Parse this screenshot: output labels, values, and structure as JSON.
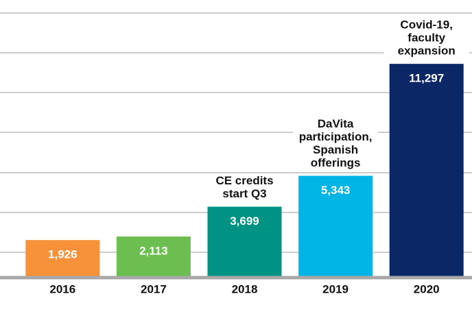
{
  "chart_data": {
    "type": "bar",
    "categories": [
      "2016",
      "2017",
      "2018",
      "2019",
      "2020"
    ],
    "values": [
      1926,
      2113,
      3699,
      5343,
      11297
    ],
    "value_labels": [
      "1,926",
      "2,113",
      "3,699",
      "5,343",
      "11,297"
    ],
    "colors": [
      "#f7923a",
      "#6dbe50",
      "#009384",
      "#00b4e6",
      "#0b2765"
    ],
    "annotations": [
      null,
      null,
      [
        "CE credits",
        "start Q3"
      ],
      [
        "DaVita",
        "participation,",
        "Spanish",
        "offerings"
      ],
      [
        "Covid-19,",
        "faculty",
        "expansion"
      ]
    ],
    "ylim": [
      0,
      14000
    ]
  }
}
